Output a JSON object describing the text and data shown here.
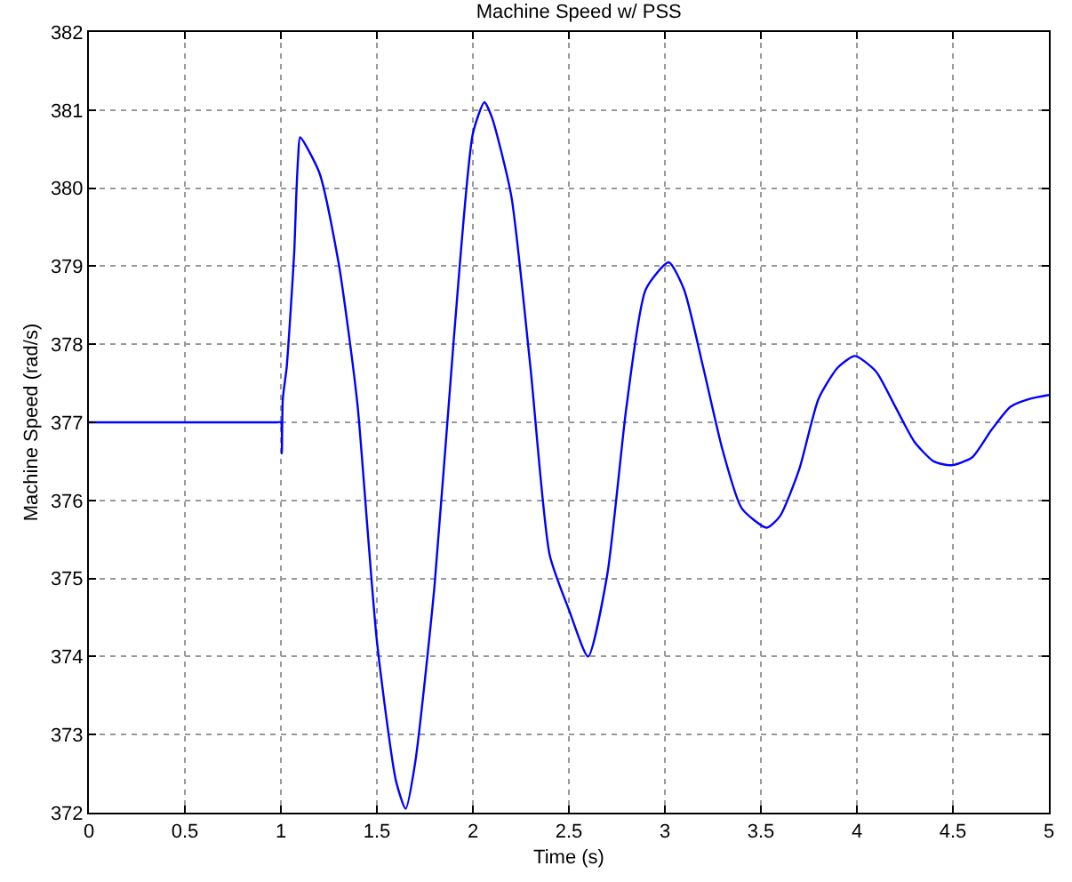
{
  "chart_data": {
    "type": "line",
    "title": "Machine Speed w/ PSS",
    "xlabel": "Time (s)",
    "ylabel": "Machine Speed (rad/s)",
    "xlim": [
      0,
      5
    ],
    "xticks": [
      0,
      0.5,
      1,
      1.5,
      2,
      2.5,
      3,
      3.5,
      4,
      4.5,
      5
    ],
    "ylim": [
      372,
      382
    ],
    "yticks": [
      372,
      373,
      374,
      375,
      376,
      377,
      378,
      379,
      380,
      381,
      382
    ],
    "grid": true,
    "marker": "none",
    "line_style": "solid",
    "series": [
      {
        "color": "#0000ff",
        "x": [
          0,
          0.25,
          0.5,
          0.75,
          0.9,
          0.98,
          1.0,
          1.005,
          1.01,
          1.03,
          1.05,
          1.07,
          1.08,
          1.09,
          1.1,
          1.2,
          1.3,
          1.35,
          1.4,
          1.5,
          1.6,
          1.65,
          1.7,
          1.8,
          1.9,
          2.0,
          2.06,
          2.1,
          2.2,
          2.3,
          2.4,
          2.5,
          2.6,
          2.7,
          2.8,
          2.9,
          3.02,
          3.1,
          3.2,
          3.3,
          3.4,
          3.53,
          3.6,
          3.7,
          3.8,
          3.9,
          3.99,
          4.1,
          4.2,
          4.3,
          4.4,
          4.49,
          4.6,
          4.7,
          4.8,
          4.9,
          5.0
        ],
        "values": [
          377,
          377,
          377,
          377,
          377,
          377,
          377,
          376.6,
          377.3,
          377.7,
          378.4,
          379.2,
          379.9,
          380.4,
          380.65,
          380.2,
          379.05,
          378.2,
          377.2,
          374.2,
          372.4,
          372.05,
          372.65,
          374.9,
          378.05,
          380.7,
          381.1,
          380.9,
          379.9,
          377.7,
          375.3,
          374.6,
          374.0,
          375.05,
          377.2,
          378.7,
          379.05,
          378.7,
          377.7,
          376.65,
          375.9,
          375.65,
          375.8,
          376.4,
          377.3,
          377.7,
          377.85,
          377.65,
          377.2,
          376.75,
          376.5,
          376.45,
          376.55,
          376.9,
          377.2,
          377.3,
          377.35
        ]
      }
    ]
  }
}
